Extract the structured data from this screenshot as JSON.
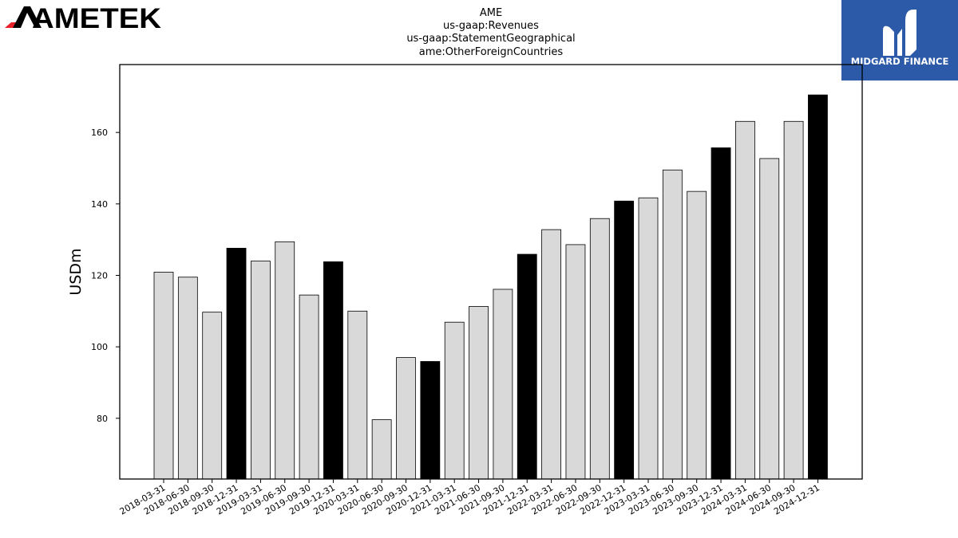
{
  "logo_left": {
    "text": "AMETEK",
    "accent_color": "#e8202a"
  },
  "logo_right": {
    "text": "MIDGARD FINANCE",
    "bg_color": "#2c5aa8"
  },
  "chart_data": {
    "type": "bar",
    "title_lines": [
      "AME",
      "us-gaap:Revenues",
      "us-gaap:StatementGeographical",
      "ame:OtherForeignCountries"
    ],
    "xlabel": "",
    "ylabel": "USDm",
    "ylim": [
      63,
      179
    ],
    "yticks": [
      80,
      100,
      120,
      140,
      160
    ],
    "grid": false,
    "legend": "none",
    "categories": [
      "2018-03-31",
      "2018-06-30",
      "2018-09-30",
      "2018-12-31",
      "2019-03-31",
      "2019-06-30",
      "2019-09-30",
      "2019-12-31",
      "2020-03-31",
      "2020-06-30",
      "2020-09-30",
      "2020-12-31",
      "2021-03-31",
      "2021-06-30",
      "2021-09-30",
      "2021-12-31",
      "2022-03-31",
      "2022-06-30",
      "2022-09-30",
      "2022-12-31",
      "2023-03-31",
      "2023-06-30",
      "2023-09-30",
      "2023-12-31",
      "2024-03-31",
      "2024-06-30",
      "2024-09-30",
      "2024-12-31"
    ],
    "values": [
      120.9,
      119.5,
      109.7,
      127.6,
      124.0,
      129.4,
      114.5,
      123.8,
      110.0,
      79.6,
      97.0,
      95.9,
      106.9,
      111.3,
      116.1,
      125.9,
      132.8,
      128.6,
      135.9,
      140.8,
      141.7,
      149.5,
      143.5,
      155.7,
      163.1,
      152.7,
      163.1,
      170.5
    ],
    "colors": {
      "quarter": "#d9d9d9",
      "year_end": "#000000",
      "edge": "#000000"
    }
  }
}
